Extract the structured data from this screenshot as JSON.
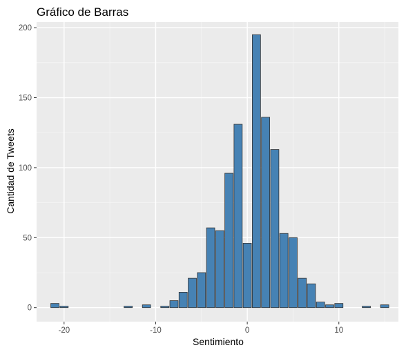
{
  "chart_data": {
    "type": "bar",
    "title": "Gráfico de Barras",
    "xlabel": "Sentimiento",
    "ylabel": "Cantidad de Tweets",
    "xlim": [
      -23,
      16.5
    ],
    "ylim": [
      -10,
      204
    ],
    "x_ticks": [
      -20,
      -10,
      0,
      10
    ],
    "y_ticks": [
      0,
      50,
      100,
      150,
      200
    ],
    "x_tick_labels": [
      "-20",
      "-10",
      "0",
      "10"
    ],
    "y_tick_labels": [
      "0",
      "50",
      "100",
      "150",
      "200"
    ],
    "grid": true,
    "bar_fill": "#4682b4",
    "bar_outline": "#333333",
    "panel_background": "#ebebeb",
    "x": [
      -21,
      -20,
      -13,
      -11,
      -9,
      -8,
      -7,
      -6,
      -5,
      -4,
      -3,
      -2,
      -1,
      0,
      1,
      2,
      3,
      4,
      5,
      6,
      7,
      8,
      9,
      10,
      13,
      15
    ],
    "values": [
      3,
      1,
      1,
      2,
      1,
      5,
      11,
      21,
      25,
      57,
      55,
      96,
      131,
      46,
      195,
      136,
      113,
      53,
      50,
      21,
      17,
      4,
      2,
      3,
      1,
      2
    ]
  }
}
